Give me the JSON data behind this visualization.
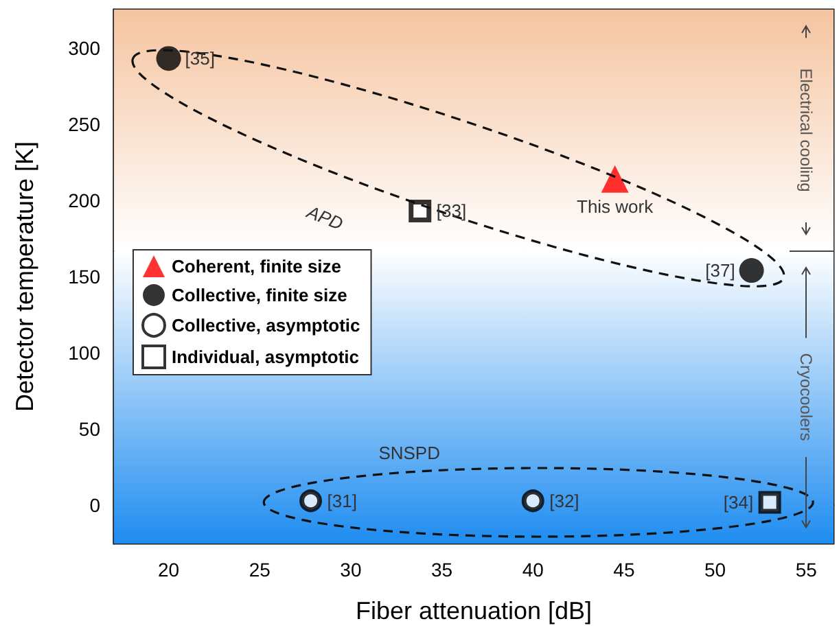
{
  "chart_data": {
    "type": "scatter",
    "xlabel": "Fiber attenuation [dB]",
    "ylabel": "Detector temperature [K]",
    "xlim": [
      17,
      56.5
    ],
    "xticks": [
      20,
      25,
      30,
      35,
      40,
      45,
      50,
      55
    ],
    "ylim": [
      -25,
      325
    ],
    "yticks": [
      0,
      50,
      100,
      150,
      200,
      250,
      300
    ],
    "legend": "left",
    "series": [
      {
        "name": "Coherent, finite size",
        "color": "#ff0000",
        "marker": "triangle",
        "x": [
          44.5
        ],
        "values": [
          214
        ]
      },
      {
        "name": "Collective, finite size",
        "color": "#000000",
        "marker": "circle",
        "x": [
          20,
          52
        ],
        "values": [
          293,
          154
        ]
      },
      {
        "name": "Collective, asymptotic",
        "color": "#ffffff",
        "marker": "circle",
        "x": [
          27.8,
          40
        ],
        "values": [
          3,
          3
        ]
      },
      {
        "name": "Individual, asymptotic",
        "color": "#ffffff",
        "marker": "square",
        "x": [
          33.8,
          53
        ],
        "values": [
          193,
          2
        ]
      }
    ],
    "bands": [
      {
        "axis": "y",
        "from": 167,
        "to": 325,
        "label": "Electrical cooling",
        "color": "#f5c4a0"
      },
      {
        "axis": "y",
        "from": -25,
        "to": 167,
        "label": "Cryocoolers",
        "color": "#1e8cf0"
      }
    ],
    "annotations": [
      {
        "text": "[35]",
        "x": 20,
        "y": 293
      },
      {
        "text": "[33]",
        "x": 33.8,
        "y": 193
      },
      {
        "text": "This work",
        "x": 44.5,
        "y": 214
      },
      {
        "text": "[37]",
        "x": 52,
        "y": 154
      },
      "APD",
      {
        "text": "[31]",
        "x": 27.8,
        "y": 3
      },
      {
        "text": "[32]",
        "x": 40,
        "y": 3
      },
      {
        "text": "[34]",
        "x": 53,
        "y": 2
      },
      "SNSPD"
    ]
  }
}
